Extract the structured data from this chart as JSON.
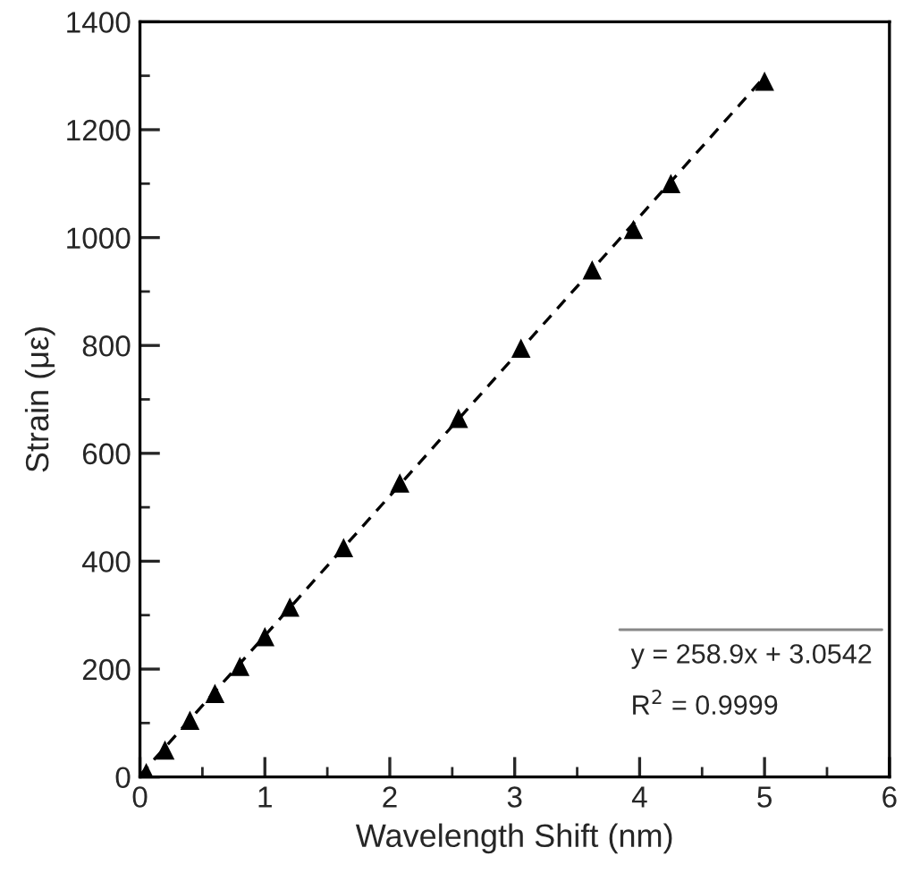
{
  "chart_data": {
    "type": "scatter",
    "xlabel": "Wavelength Shift (nm)",
    "ylabel": "Strain (με)",
    "xlim": [
      0,
      6
    ],
    "xticks": [
      0,
      1,
      2,
      3,
      4,
      5,
      6
    ],
    "ylim": [
      0,
      1400
    ],
    "yticks": [
      0,
      200,
      400,
      600,
      800,
      1000,
      1200,
      1400
    ],
    "grid": false,
    "legend": false,
    "series": [
      {
        "color": "#000000",
        "marker": "triangle",
        "x": [
          0.05,
          0.2,
          0.4,
          0.6,
          0.8,
          1.0,
          1.2,
          1.63,
          2.08,
          2.55,
          3.05,
          3.62,
          3.95,
          4.25,
          5.0
        ],
        "values": [
          8,
          50,
          105,
          155,
          205,
          260,
          315,
          425,
          545,
          665,
          795,
          940,
          1015,
          1100,
          1290
        ]
      },
      {
        "type": "line",
        "color": "#000000",
        "line_style": "dashed",
        "marker": "none",
        "x": [
          0,
          5
        ],
        "values": [
          3,
          1298
        ]
      }
    ],
    "annotations": [
      "y = 258.9x + 3.0542",
      "R$^{2}$ = 0.9999"
    ]
  }
}
